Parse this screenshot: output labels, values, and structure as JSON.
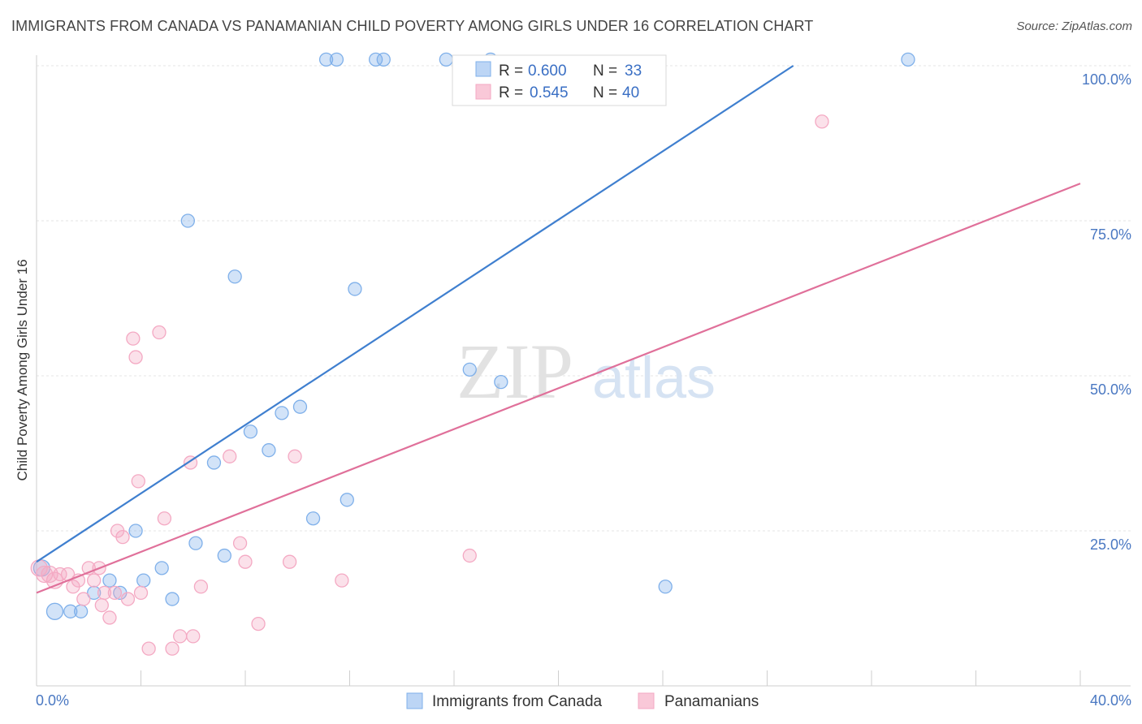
{
  "title": "IMMIGRANTS FROM CANADA VS PANAMANIAN CHILD POVERTY AMONG GIRLS UNDER 16 CORRELATION CHART",
  "source": "Source: ZipAtlas.com",
  "watermark": {
    "zip": "ZIP",
    "atlas": "atlas"
  },
  "chart_data": {
    "type": "scatter",
    "xlabel": "",
    "ylabel": "Child Poverty Among Girls Under 16",
    "xlim": [
      0,
      40
    ],
    "ylim": [
      0,
      100
    ],
    "x_tick_labels": [
      "0.0%",
      "40.0%"
    ],
    "y_ticks": [
      25,
      50,
      75,
      100
    ],
    "y_tick_labels": [
      "25.0%",
      "50.0%",
      "75.0%",
      "100.0%"
    ],
    "grid": true,
    "legend_placement": "top-center",
    "series": [
      {
        "name": "Immigrants from Canada",
        "color": "#7fb0ea",
        "line_color": "#3f7fcf",
        "R_label": "R =",
        "R": "0.600",
        "N_label": "N =",
        "N": "33",
        "trend": {
          "x": [
            0,
            29
          ],
          "y": [
            20,
            100
          ]
        },
        "points": [
          [
            0.2,
            19
          ],
          [
            0.7,
            12
          ],
          [
            1.3,
            12
          ],
          [
            1.7,
            12
          ],
          [
            2.2,
            15
          ],
          [
            2.8,
            17
          ],
          [
            3.2,
            15
          ],
          [
            3.8,
            25
          ],
          [
            4.1,
            17
          ],
          [
            4.8,
            19
          ],
          [
            5.2,
            14
          ],
          [
            5.8,
            75
          ],
          [
            6.1,
            23
          ],
          [
            6.8,
            36
          ],
          [
            7.2,
            21
          ],
          [
            7.6,
            66
          ],
          [
            8.2,
            41
          ],
          [
            8.9,
            38
          ],
          [
            9.4,
            44
          ],
          [
            10.1,
            45
          ],
          [
            10.6,
            27
          ],
          [
            11.1,
            101
          ],
          [
            11.5,
            101
          ],
          [
            11.9,
            30
          ],
          [
            12.2,
            64
          ],
          [
            13.0,
            101
          ],
          [
            13.3,
            101
          ],
          [
            15.7,
            101
          ],
          [
            16.6,
            51
          ],
          [
            17.4,
            101
          ],
          [
            17.8,
            49
          ],
          [
            24.1,
            16
          ],
          [
            33.4,
            101
          ]
        ]
      },
      {
        "name": "Panamanians",
        "color": "#f4a9c3",
        "line_color": "#e0709a",
        "R_label": "R =",
        "R": "0.545",
        "N_label": "N =",
        "N": "40",
        "trend": {
          "x": [
            0,
            40
          ],
          "y": [
            15,
            81
          ]
        },
        "points": [
          [
            0.1,
            19
          ],
          [
            0.3,
            18
          ],
          [
            0.5,
            18
          ],
          [
            0.7,
            17
          ],
          [
            0.9,
            18
          ],
          [
            1.2,
            18
          ],
          [
            1.4,
            16
          ],
          [
            1.6,
            17
          ],
          [
            1.8,
            14
          ],
          [
            2.0,
            19
          ],
          [
            2.2,
            17
          ],
          [
            2.4,
            19
          ],
          [
            2.5,
            13
          ],
          [
            2.6,
            15
          ],
          [
            2.8,
            11
          ],
          [
            3.0,
            15
          ],
          [
            3.1,
            25
          ],
          [
            3.3,
            24
          ],
          [
            3.5,
            14
          ],
          [
            3.7,
            56
          ],
          [
            3.8,
            53
          ],
          [
            3.9,
            33
          ],
          [
            4.0,
            15
          ],
          [
            4.3,
            6
          ],
          [
            4.7,
            57
          ],
          [
            4.9,
            27
          ],
          [
            5.2,
            6
          ],
          [
            5.5,
            8
          ],
          [
            5.9,
            36
          ],
          [
            6.0,
            8
          ],
          [
            6.3,
            16
          ],
          [
            7.4,
            37
          ],
          [
            7.8,
            23
          ],
          [
            8.0,
            20
          ],
          [
            8.5,
            10
          ],
          [
            9.7,
            20
          ],
          [
            9.9,
            37
          ],
          [
            11.7,
            17
          ],
          [
            16.6,
            21
          ],
          [
            30.1,
            91
          ]
        ]
      }
    ]
  }
}
